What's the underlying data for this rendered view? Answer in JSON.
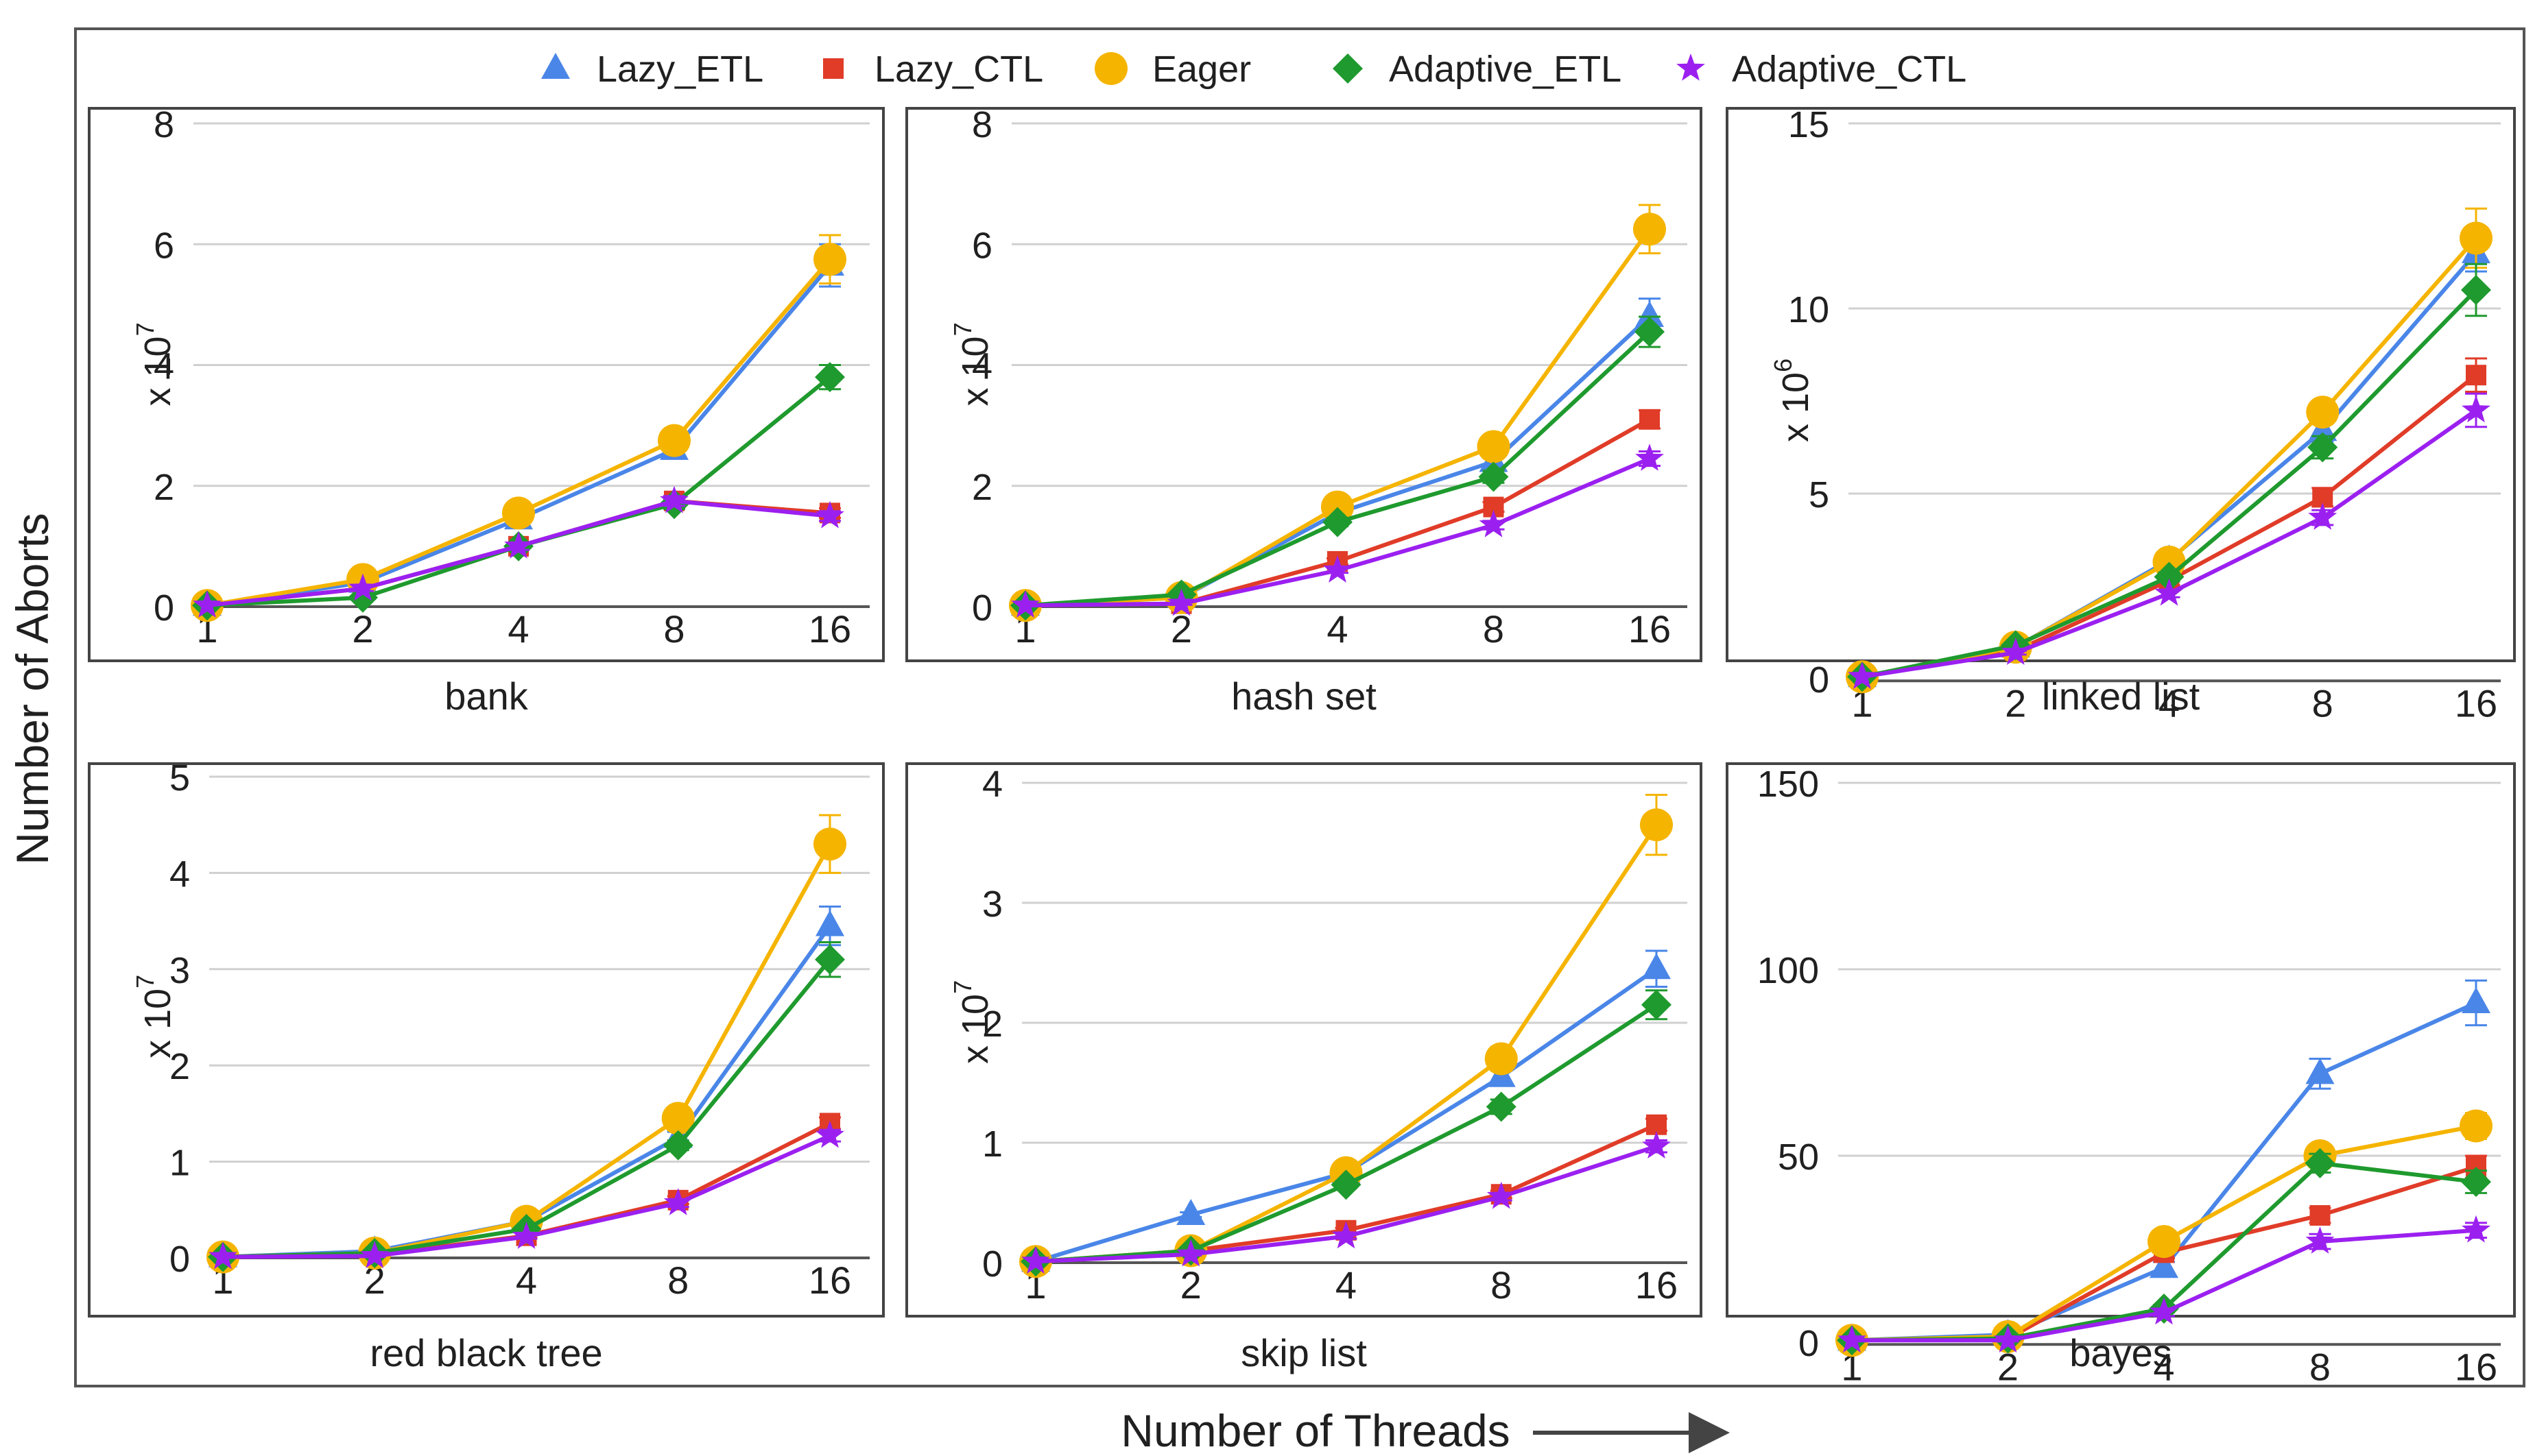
{
  "figure": {
    "ylabel": "Number of Aborts",
    "xlabel": "Number of Threads",
    "legend": {
      "position": "top",
      "items": [
        {
          "name": "Lazy_ETL",
          "marker": "triangle",
          "color": "#4a86e8"
        },
        {
          "name": "Lazy_CTL",
          "marker": "square",
          "color": "#e03c28"
        },
        {
          "name": "Eager",
          "marker": "circle",
          "color": "#f5b400"
        },
        {
          "name": "Adaptive_ETL",
          "marker": "diamond",
          "color": "#1f9a2e"
        },
        {
          "name": "Adaptive_CTL",
          "marker": "star",
          "color": "#9b20f0"
        }
      ]
    }
  },
  "chart_data": [
    {
      "type": "line",
      "title": "bank",
      "scale_label": "x 10",
      "scale_exp": "7",
      "categories": [
        "1",
        "2",
        "4",
        "8",
        "16"
      ],
      "ylim": [
        0,
        8
      ],
      "yticks": [
        "0",
        "2",
        "4",
        "6",
        "8"
      ],
      "ytick_values": [
        0,
        2,
        4,
        6,
        8
      ],
      "series": [
        {
          "name": "Lazy_ETL",
          "values": [
            0.02,
            0.4,
            1.45,
            2.6,
            5.65
          ],
          "err": [
            0,
            0.05,
            0.08,
            0.15,
            0.35
          ]
        },
        {
          "name": "Lazy_CTL",
          "values": [
            0.02,
            0.3,
            1.0,
            1.75,
            1.55
          ],
          "err": [
            0,
            0.04,
            0.06,
            0.08,
            0.08
          ]
        },
        {
          "name": "Eager",
          "values": [
            0.02,
            0.45,
            1.55,
            2.75,
            5.75
          ],
          "err": [
            0,
            0.05,
            0.08,
            0.12,
            0.4
          ]
        },
        {
          "name": "Adaptive_ETL",
          "values": [
            0.02,
            0.15,
            1.0,
            1.7,
            3.8
          ],
          "err": [
            0,
            0.03,
            0.06,
            0.08,
            0.2
          ]
        },
        {
          "name": "Adaptive_CTL",
          "values": [
            0.02,
            0.3,
            1.0,
            1.75,
            1.5
          ],
          "err": [
            0,
            0.04,
            0.06,
            0.08,
            0.08
          ]
        }
      ]
    },
    {
      "type": "line",
      "title": "hash set",
      "scale_label": "x 10",
      "scale_exp": "7",
      "categories": [
        "1",
        "2",
        "4",
        "8",
        "16"
      ],
      "ylim": [
        0,
        8
      ],
      "yticks": [
        "0",
        "2",
        "4",
        "6",
        "8"
      ],
      "ytick_values": [
        0,
        2,
        4,
        6,
        8
      ],
      "series": [
        {
          "name": "Lazy_ETL",
          "values": [
            0.02,
            0.15,
            1.55,
            2.4,
            4.8
          ],
          "err": [
            0,
            0.03,
            0.07,
            0.12,
            0.3
          ]
        },
        {
          "name": "Lazy_CTL",
          "values": [
            0.02,
            0.05,
            0.75,
            1.65,
            3.1
          ],
          "err": [
            0,
            0.02,
            0.05,
            0.08,
            0.15
          ]
        },
        {
          "name": "Eager",
          "values": [
            0.02,
            0.15,
            1.65,
            2.65,
            6.25
          ],
          "err": [
            0,
            0.03,
            0.07,
            0.12,
            0.4
          ]
        },
        {
          "name": "Adaptive_ETL",
          "values": [
            0.02,
            0.2,
            1.4,
            2.15,
            4.55
          ],
          "err": [
            0,
            0.03,
            0.07,
            0.1,
            0.25
          ]
        },
        {
          "name": "Adaptive_CTL",
          "values": [
            0.02,
            0.05,
            0.6,
            1.35,
            2.45
          ],
          "err": [
            0,
            0.02,
            0.04,
            0.07,
            0.12
          ]
        }
      ]
    },
    {
      "type": "line",
      "title": "linked list",
      "scale_label": "x 10",
      "scale_exp": "6",
      "categories": [
        "1",
        "2",
        "4",
        "8",
        "16"
      ],
      "ylim": [
        0,
        15
      ],
      "yticks": [
        "0",
        "5",
        "10",
        "15"
      ],
      "ytick_values": [
        0,
        5,
        10,
        15
      ],
      "series": [
        {
          "name": "Lazy_ETL",
          "values": [
            0.05,
            0.85,
            3.2,
            6.7,
            11.5
          ],
          "err": [
            0,
            0.05,
            0.15,
            0.3,
            0.5
          ]
        },
        {
          "name": "Lazy_CTL",
          "values": [
            0.05,
            0.75,
            2.65,
            4.9,
            8.2
          ],
          "err": [
            0,
            0.05,
            0.12,
            0.25,
            0.45
          ]
        },
        {
          "name": "Eager",
          "values": [
            0.05,
            0.85,
            3.15,
            7.2,
            11.9
          ],
          "err": [
            0,
            0.05,
            0.15,
            0.3,
            0.8
          ]
        },
        {
          "name": "Adaptive_ETL",
          "values": [
            0.05,
            0.9,
            2.75,
            6.25,
            10.5
          ],
          "err": [
            0,
            0.05,
            0.12,
            0.3,
            0.7
          ]
        },
        {
          "name": "Adaptive_CTL",
          "values": [
            0.05,
            0.7,
            2.3,
            4.35,
            7.25
          ],
          "err": [
            0,
            0.05,
            0.1,
            0.2,
            0.45
          ]
        }
      ]
    },
    {
      "type": "line",
      "title": "red black tree",
      "scale_label": "x 10",
      "scale_exp": "7",
      "categories": [
        "1",
        "2",
        "4",
        "8",
        "16"
      ],
      "ylim": [
        0,
        5
      ],
      "yticks": [
        "0",
        "1",
        "2",
        "3",
        "4",
        "5"
      ],
      "ytick_values": [
        0,
        1,
        2,
        3,
        4,
        5
      ],
      "series": [
        {
          "name": "Lazy_ETL",
          "values": [
            0.01,
            0.07,
            0.38,
            1.25,
            3.45
          ],
          "err": [
            0,
            0.01,
            0.03,
            0.06,
            0.2
          ]
        },
        {
          "name": "Lazy_CTL",
          "values": [
            0.01,
            0.03,
            0.23,
            0.6,
            1.4
          ],
          "err": [
            0,
            0.01,
            0.02,
            0.04,
            0.06
          ]
        },
        {
          "name": "Eager",
          "values": [
            0.01,
            0.05,
            0.38,
            1.45,
            4.3
          ],
          "err": [
            0,
            0.01,
            0.03,
            0.06,
            0.3
          ]
        },
        {
          "name": "Adaptive_ETL",
          "values": [
            0.01,
            0.05,
            0.3,
            1.17,
            3.1
          ],
          "err": [
            0,
            0.01,
            0.03,
            0.05,
            0.18
          ]
        },
        {
          "name": "Adaptive_CTL",
          "values": [
            0.01,
            0.02,
            0.22,
            0.57,
            1.27
          ],
          "err": [
            0,
            0.01,
            0.02,
            0.04,
            0.06
          ]
        }
      ]
    },
    {
      "type": "line",
      "title": "skip list",
      "scale_label": "x 10",
      "scale_exp": "7",
      "categories": [
        "1",
        "2",
        "4",
        "8",
        "16"
      ],
      "ylim": [
        0,
        4
      ],
      "yticks": [
        "0",
        "1",
        "2",
        "3",
        "4"
      ],
      "ytick_values": [
        0,
        1,
        2,
        3,
        4
      ],
      "series": [
        {
          "name": "Lazy_ETL",
          "values": [
            0.01,
            0.4,
            0.75,
            1.55,
            2.45
          ],
          "err": [
            0,
            0.02,
            0.04,
            0.07,
            0.15
          ]
        },
        {
          "name": "Lazy_CTL",
          "values": [
            0.01,
            0.1,
            0.27,
            0.57,
            1.15
          ],
          "err": [
            0,
            0.01,
            0.02,
            0.03,
            0.05
          ]
        },
        {
          "name": "Eager",
          "values": [
            0.01,
            0.1,
            0.75,
            1.7,
            3.65
          ],
          "err": [
            0,
            0.01,
            0.04,
            0.1,
            0.25
          ]
        },
        {
          "name": "Adaptive_ETL",
          "values": [
            0.01,
            0.1,
            0.65,
            1.3,
            2.15
          ],
          "err": [
            0,
            0.01,
            0.03,
            0.06,
            0.12
          ]
        },
        {
          "name": "Adaptive_CTL",
          "values": [
            0.01,
            0.07,
            0.22,
            0.55,
            0.97
          ],
          "err": [
            0,
            0.01,
            0.02,
            0.03,
            0.05
          ]
        }
      ]
    },
    {
      "type": "line",
      "title": "bayes",
      "scale_label": "",
      "scale_exp": "",
      "categories": [
        "1",
        "2",
        "4",
        "8",
        "16"
      ],
      "ylim": [
        0,
        150
      ],
      "yticks": [
        "0",
        "50",
        "100",
        "150"
      ],
      "ytick_values": [
        0,
        50,
        100,
        150
      ],
      "series": [
        {
          "name": "Lazy_ETL",
          "values": [
            0.5,
            2,
            20,
            72,
            91
          ],
          "err": [
            0,
            0.5,
            1.5,
            4,
            6
          ]
        },
        {
          "name": "Lazy_CTL",
          "values": [
            0.5,
            1,
            24,
            34,
            47
          ],
          "err": [
            0,
            0.3,
            1.5,
            2,
            3
          ]
        },
        {
          "name": "Eager",
          "values": [
            0.5,
            1.5,
            27,
            50,
            58
          ],
          "err": [
            0,
            0.3,
            1.5,
            3,
            3.5
          ]
        },
        {
          "name": "Adaptive_ETL",
          "values": [
            0.5,
            1,
            9,
            48,
            43
          ],
          "err": [
            0,
            0.3,
            1,
            2.5,
            3
          ]
        },
        {
          "name": "Adaptive_CTL",
          "values": [
            0.5,
            0.5,
            8,
            27,
            30
          ],
          "err": [
            0,
            0.3,
            1,
            2,
            2
          ]
        }
      ]
    }
  ]
}
